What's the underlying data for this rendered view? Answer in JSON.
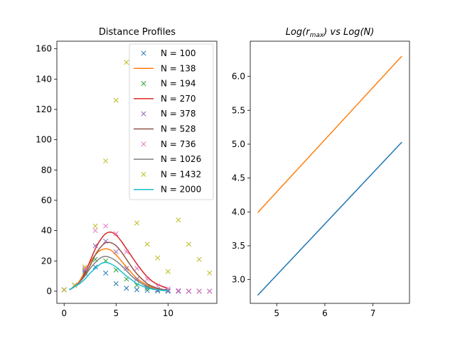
{
  "chart_data": [
    {
      "type": "line",
      "title": "Distance Profiles",
      "xlabel": "",
      "ylabel": "",
      "xlim": [
        -0.7,
        14.7
      ],
      "ylim": [
        -8,
        165
      ],
      "xticks": [
        0,
        5,
        10
      ],
      "yticks": [
        0,
        20,
        40,
        60,
        80,
        100,
        120,
        140,
        160
      ],
      "legend_position": "top-right",
      "series": [
        {
          "name": "N = 100",
          "style": "marker-x",
          "color": "#1f77b4",
          "x": [
            0,
            1,
            2,
            3,
            4,
            5,
            6,
            7,
            8,
            9,
            10,
            11,
            12,
            13,
            14
          ],
          "y": [
            1,
            4,
            12,
            16,
            12,
            5,
            2,
            1,
            0.5,
            0.2,
            0,
            0,
            0,
            0,
            0
          ]
        },
        {
          "name": "N = 138",
          "style": "line",
          "color": "#ff7f0e",
          "x": [
            0.5,
            1,
            1.5,
            2,
            2.5,
            3,
            3.5,
            4,
            4.5,
            5,
            5.5,
            6,
            6.5,
            7,
            7.5,
            8,
            8.5,
            9,
            9.5,
            10
          ],
          "y": [
            1,
            3,
            7,
            13,
            19,
            24,
            27,
            28,
            27,
            24,
            20,
            16,
            12,
            8.5,
            6,
            4,
            2.5,
            1.5,
            0.8,
            0.4
          ]
        },
        {
          "name": "N = 194",
          "style": "marker-x",
          "color": "#2ca02c",
          "x": [
            0,
            1,
            2,
            3,
            4,
            5,
            6,
            7,
            8,
            9,
            10,
            11,
            12,
            13,
            14
          ],
          "y": [
            1,
            4,
            13,
            21,
            20,
            14,
            8,
            4,
            2,
            1,
            0.5,
            0,
            0,
            0,
            0
          ]
        },
        {
          "name": "N = 270",
          "style": "line",
          "color": "#d62728",
          "x": [
            0.5,
            1,
            1.5,
            2,
            2.5,
            3,
            3.5,
            4,
            4.5,
            5,
            5.5,
            6,
            6.5,
            7,
            7.5,
            8,
            8.5,
            9,
            9.5,
            10
          ],
          "y": [
            1,
            3,
            6,
            12,
            20,
            28,
            34,
            38,
            39,
            37,
            33,
            28,
            23,
            18,
            13.5,
            9.5,
            6.5,
            4.5,
            3,
            2
          ]
        },
        {
          "name": "N = 378",
          "style": "marker-x",
          "color": "#9467bd",
          "x": [
            0,
            1,
            2,
            3,
            4,
            5,
            6,
            7,
            8,
            9,
            10,
            11,
            12,
            13,
            14
          ],
          "y": [
            1,
            4,
            14,
            30,
            33,
            26,
            15,
            8,
            3,
            1,
            0.5,
            0,
            0,
            0,
            0
          ]
        },
        {
          "name": "N = 528",
          "style": "line",
          "color": "#8c564b",
          "x": [
            0.5,
            1,
            1.5,
            2,
            2.5,
            3,
            3.5,
            4,
            4.5,
            5,
            5.5,
            6,
            6.5,
            7,
            7.5,
            8,
            8.5,
            9,
            9.5,
            10
          ],
          "y": [
            1,
            3,
            6,
            11,
            17,
            24,
            29,
            32,
            32,
            30,
            26,
            21,
            16,
            11.5,
            8,
            5,
            3.2,
            2,
            1.2,
            0.7
          ]
        },
        {
          "name": "N = 736",
          "style": "marker-x",
          "color": "#e377c2",
          "x": [
            0,
            1,
            2,
            3,
            4,
            5,
            6,
            7,
            8,
            9,
            10,
            11,
            12,
            13,
            14
          ],
          "y": [
            1,
            4,
            15,
            40,
            43,
            38,
            26,
            15,
            8,
            3.5,
            1.5,
            0.5,
            0.2,
            0,
            0
          ]
        },
        {
          "name": "N = 1026",
          "style": "line",
          "color": "#7f7f7f",
          "x": [
            0.5,
            1,
            1.5,
            2,
            2.5,
            3,
            3.5,
            4,
            4.5,
            5,
            5.5,
            6,
            6.5,
            7,
            7.5,
            8,
            8.5,
            9,
            9.5,
            10
          ],
          "y": [
            1,
            3,
            6,
            10,
            15,
            19,
            22,
            23,
            22,
            20,
            17,
            13.5,
            10,
            7,
            5,
            3,
            2,
            1.2,
            0.7,
            0.4
          ]
        },
        {
          "name": "N = 1432",
          "style": "marker-x",
          "color": "#bcbd22",
          "x": [
            0,
            1,
            2,
            3,
            4,
            5,
            6,
            7,
            8,
            9,
            10,
            11,
            12,
            13,
            14
          ],
          "y": [
            1,
            4,
            16,
            43,
            86,
            126,
            151,
            45,
            31,
            22,
            13,
            47,
            31,
            21,
            12
          ]
        },
        {
          "name": "N = 2000",
          "style": "line",
          "color": "#17becf",
          "x": [
            0.5,
            1,
            1.5,
            2,
            2.5,
            3,
            3.5,
            4,
            4.5,
            5,
            5.5,
            6,
            6.5,
            7,
            7.5,
            8,
            8.5,
            9,
            9.5,
            10
          ],
          "y": [
            1,
            3,
            5,
            8,
            12,
            15,
            18,
            19,
            18,
            16,
            13,
            10,
            7.5,
            5,
            3.5,
            2.2,
            1.4,
            0.9,
            0.5,
            0.3
          ]
        }
      ]
    },
    {
      "type": "line",
      "title_parts": [
        "Log(",
        "r",
        "max",
        ") vs Log(N)"
      ],
      "xlabel": "",
      "ylabel": "",
      "xlim": [
        4.45,
        7.76
      ],
      "ylim": [
        2.65,
        6.52
      ],
      "xticks": [
        5,
        6,
        7
      ],
      "yticks": [
        3.0,
        3.5,
        4.0,
        4.5,
        5.0,
        5.5,
        6.0
      ],
      "series": [
        {
          "color": "#1f77b4",
          "x": [
            4.605,
            7.601
          ],
          "y": [
            2.77,
            5.03
          ]
        },
        {
          "color": "#ff7f0e",
          "x": [
            4.605,
            7.601
          ],
          "y": [
            3.99,
            6.3
          ]
        }
      ]
    }
  ]
}
